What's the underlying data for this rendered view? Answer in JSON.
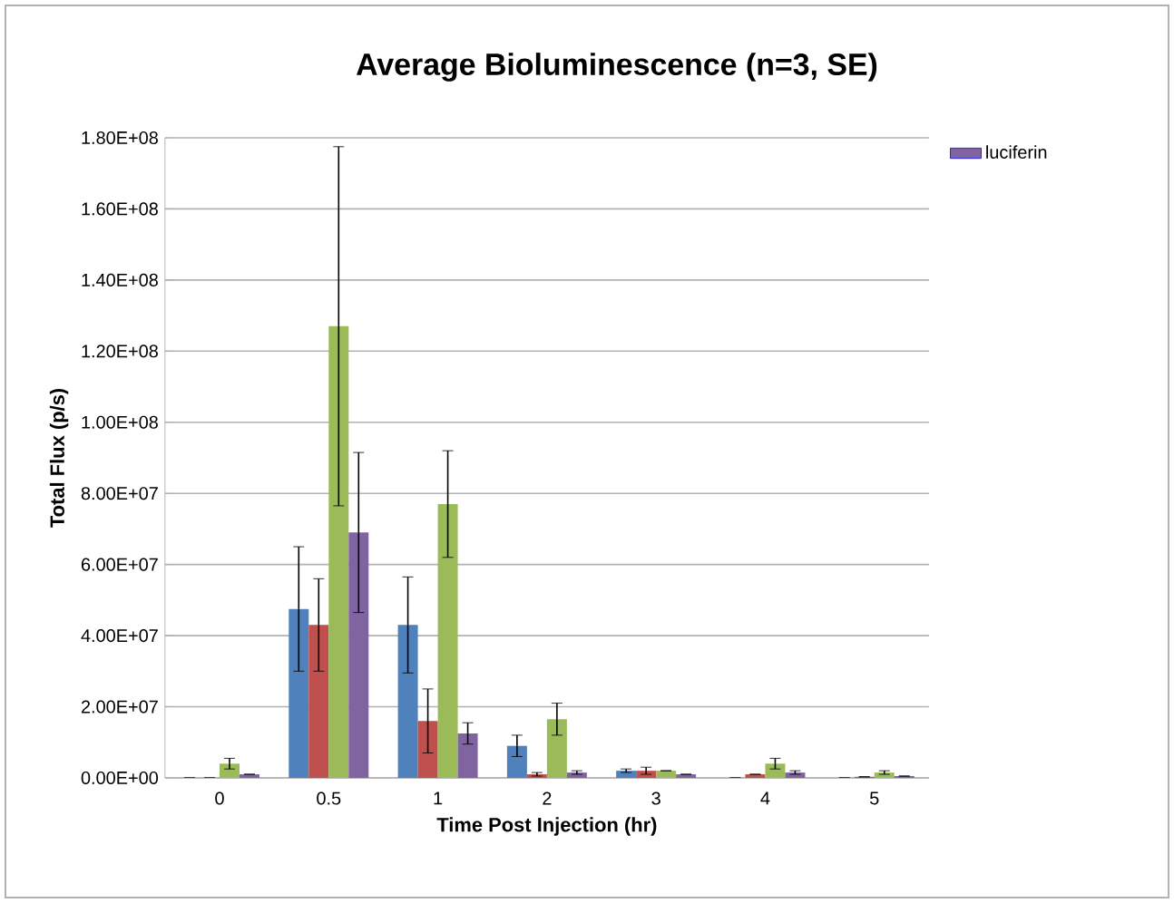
{
  "chart_data": {
    "type": "bar",
    "title": "Average Bioluminescence (n=3, SE)",
    "xlabel": "Time Post Injection (hr)",
    "ylabel": "Total Flux (p/s)",
    "categories": [
      "0",
      "0.5",
      "1",
      "2",
      "3",
      "4",
      "5"
    ],
    "series": [
      {
        "color": "#4f81bd",
        "values": [
          0,
          47500000,
          43000000,
          9000000,
          2000000,
          0,
          0
        ],
        "errors": [
          null,
          17500000,
          13500000,
          3000000,
          500000,
          null,
          null
        ]
      },
      {
        "color": "#c0504d",
        "values": [
          0,
          43000000,
          16000000,
          1000000,
          2000000,
          1000000,
          300000
        ],
        "errors": [
          null,
          13000000,
          9000000,
          500000,
          1000000,
          null,
          null
        ]
      },
      {
        "color": "#9bbb59",
        "values": [
          4000000,
          127000000,
          77000000,
          16500000,
          2000000,
          4000000,
          1500000
        ],
        "errors": [
          1500000,
          50500000,
          15000000,
          4500000,
          null,
          1500000,
          500000
        ]
      },
      {
        "name": "luciferin",
        "color": "#8064a2",
        "values": [
          1000000,
          69000000,
          12500000,
          1500000,
          1000000,
          1500000,
          500000
        ],
        "errors": [
          null,
          22500000,
          3000000,
          500000,
          null,
          500000,
          null
        ]
      }
    ],
    "ylim": [
      0,
      180000000
    ],
    "yticks": [
      {
        "value": 0,
        "label": "0.00E+00"
      },
      {
        "value": 20000000,
        "label": "2.00E+07"
      },
      {
        "value": 40000000,
        "label": "4.00E+07"
      },
      {
        "value": 60000000,
        "label": "6.00E+07"
      },
      {
        "value": 80000000,
        "label": "8.00E+07"
      },
      {
        "value": 100000000,
        "label": "1.00E+08"
      },
      {
        "value": 120000000,
        "label": "1.20E+08"
      },
      {
        "value": 140000000,
        "label": "1.40E+08"
      },
      {
        "value": 160000000,
        "label": "1.60E+08"
      },
      {
        "value": 180000000,
        "label": "1.80E+08"
      }
    ],
    "grid": "y",
    "legend": "top right"
  }
}
